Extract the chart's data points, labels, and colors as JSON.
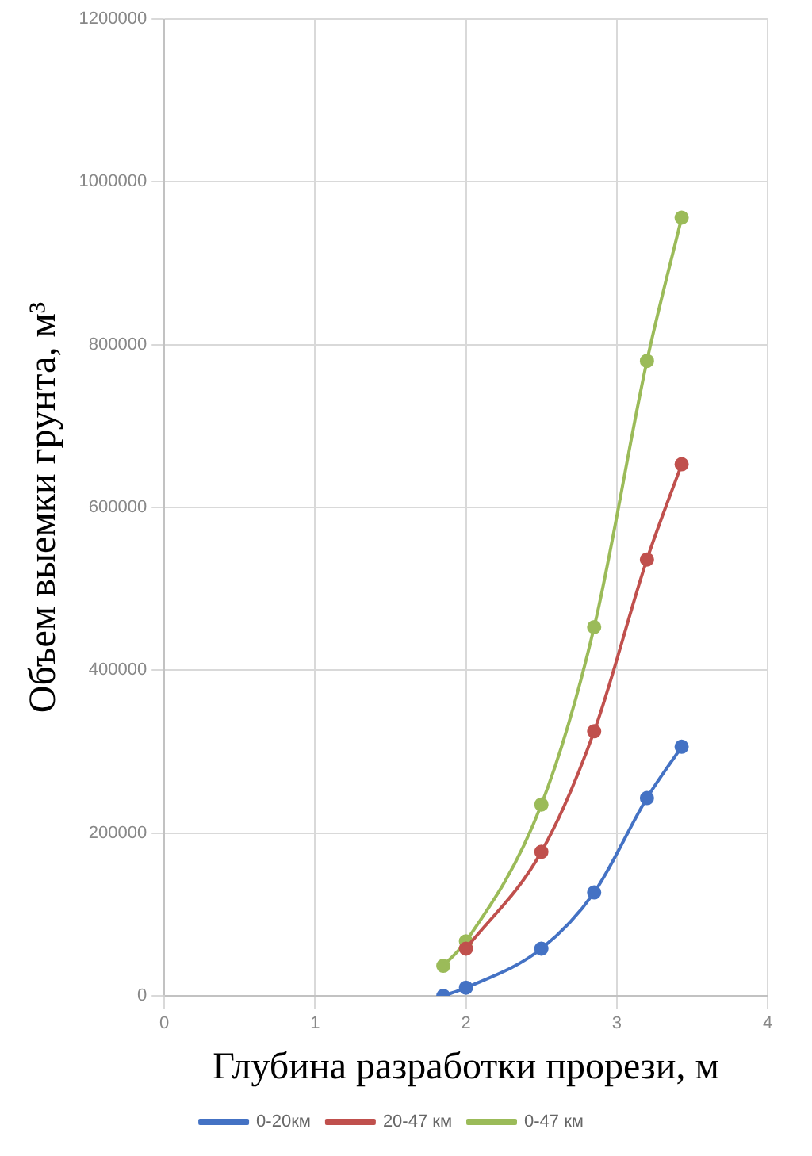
{
  "chart_data": {
    "type": "line",
    "xlabel": "Глубина разработки прорези, м",
    "ylabel": "Объем выемки грунта, м³",
    "xlim": [
      0,
      4
    ],
    "xticks": [
      0,
      1,
      2,
      3,
      4
    ],
    "ylim": [
      0,
      1200000
    ],
    "yticks": [
      0,
      200000,
      400000,
      600000,
      800000,
      1000000,
      1200000
    ],
    "grid": true,
    "legend": "bottom",
    "marker": "circle",
    "line_style": "solid",
    "series": [
      {
        "name": "0-20км",
        "color": "#4472c4",
        "x": [
          1.85,
          2.0,
          2.5,
          2.85,
          3.2,
          3.43
        ],
        "values": [
          0,
          10000,
          58000,
          127000,
          243000,
          306000
        ]
      },
      {
        "name": "20-47 км",
        "color": "#c0504d",
        "x": [
          2.0,
          2.5,
          2.85,
          3.2,
          3.43
        ],
        "values": [
          58000,
          177000,
          325000,
          536000,
          653000
        ]
      },
      {
        "name": "0-47 км",
        "color": "#9bbb59",
        "x": [
          1.85,
          2.0,
          2.5,
          2.85,
          3.2,
          3.43
        ],
        "values": [
          37000,
          67000,
          235000,
          453000,
          780000,
          956000
        ]
      }
    ]
  }
}
